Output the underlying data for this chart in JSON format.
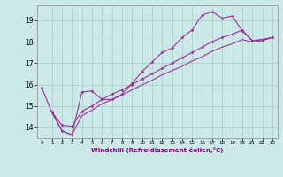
{
  "xlabel": "Windchill (Refroidissement éolien,°C)",
  "background_color": "#cce8e8",
  "grid_color": "#aacccc",
  "line_color": "#993399",
  "xlim": [
    -0.5,
    23.5
  ],
  "ylim": [
    13.5,
    19.7
  ],
  "yticks": [
    14,
    15,
    16,
    17,
    18,
    19
  ],
  "xticks": [
    0,
    1,
    2,
    3,
    4,
    5,
    6,
    7,
    8,
    9,
    10,
    11,
    12,
    13,
    14,
    15,
    16,
    17,
    18,
    19,
    20,
    21,
    22,
    23
  ],
  "series1_x": [
    0,
    1,
    2,
    3,
    4,
    5,
    6,
    7,
    8,
    9,
    10,
    11,
    12,
    13,
    14,
    15,
    16,
    17,
    18,
    19,
    20,
    21,
    22,
    23
  ],
  "series1_y": [
    15.85,
    14.7,
    13.85,
    13.65,
    15.65,
    15.7,
    15.3,
    15.3,
    15.55,
    16.05,
    16.6,
    17.05,
    17.5,
    17.7,
    18.2,
    18.55,
    19.25,
    19.4,
    19.1,
    19.2,
    18.5,
    18.05,
    18.1,
    18.2
  ],
  "series2_x": [
    1,
    2,
    3,
    4,
    5,
    6,
    7,
    8,
    9,
    10,
    11,
    12,
    13,
    14,
    15,
    16,
    17,
    18,
    19,
    20,
    21,
    22,
    23
  ],
  "series2_y": [
    14.72,
    14.1,
    14.05,
    14.75,
    15.0,
    15.3,
    15.55,
    15.75,
    16.0,
    16.25,
    16.5,
    16.75,
    17.0,
    17.25,
    17.5,
    17.75,
    18.0,
    18.2,
    18.35,
    18.55,
    18.05,
    18.1,
    18.2
  ],
  "series3_x": [
    1,
    2,
    3,
    4,
    5,
    6,
    7,
    8,
    9,
    10,
    11,
    12,
    13,
    14,
    15,
    16,
    17,
    18,
    19,
    20,
    21,
    22,
    23
  ],
  "series3_y": [
    14.72,
    13.85,
    13.65,
    14.55,
    14.8,
    15.1,
    15.3,
    15.5,
    15.75,
    15.98,
    16.2,
    16.45,
    16.65,
    16.85,
    17.1,
    17.3,
    17.55,
    17.75,
    17.9,
    18.1,
    17.98,
    18.05,
    18.2
  ]
}
